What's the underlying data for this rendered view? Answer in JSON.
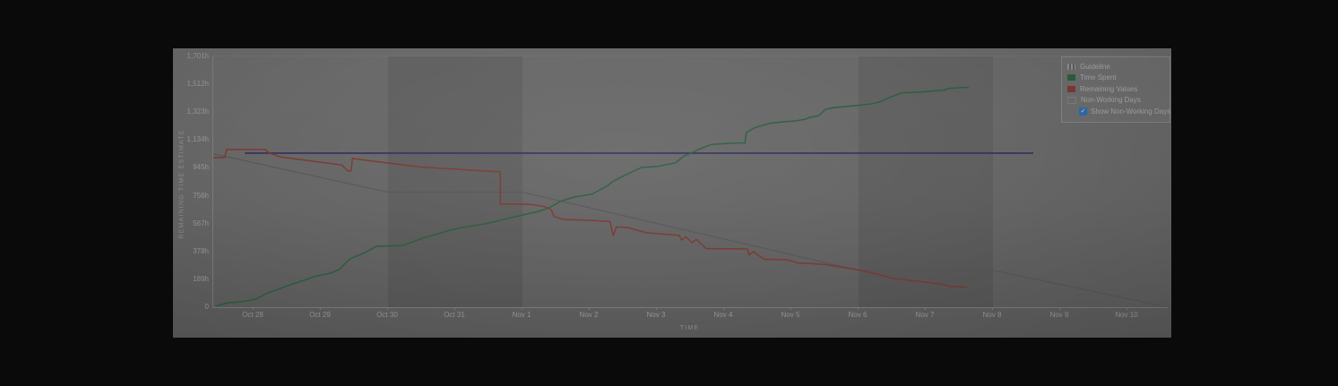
{
  "colors": {
    "page_bg": "#0a0a0a",
    "card_bg": "#676767",
    "band_fill": "rgba(0,0,0,0.075)",
    "guideline": "#56575a",
    "time_spent": "#2e5e41",
    "remaining_values": "#7c3b33",
    "flat_line": "#34345c",
    "checkbox_blue": "#2d6bad",
    "tick_text": "#989898",
    "axis_line": "#7d7d7d"
  },
  "chart_data": {
    "type": "line",
    "title": "",
    "xlabel": "TIME",
    "ylabel": "REMAINING TIME ESTIMATE",
    "x_unit": "day-index (1 = Oct 28)",
    "x_domain": [
      0.4,
      14.6
    ],
    "ylim": [
      0,
      1701
    ],
    "grid": false,
    "legend_position": "top-right",
    "x_ticks": [
      {
        "day": 1,
        "label": "Oct 28"
      },
      {
        "day": 2,
        "label": "Oct 29"
      },
      {
        "day": 3,
        "label": "Oct 30"
      },
      {
        "day": 4,
        "label": "Oct 31"
      },
      {
        "day": 5,
        "label": "Nov 1"
      },
      {
        "day": 6,
        "label": "Nov 2"
      },
      {
        "day": 7,
        "label": "Nov 3"
      },
      {
        "day": 8,
        "label": "Nov 4"
      },
      {
        "day": 9,
        "label": "Nov 5"
      },
      {
        "day": 10,
        "label": "Nov 6"
      },
      {
        "day": 11,
        "label": "Nov 7"
      },
      {
        "day": 12,
        "label": "Nov 8"
      },
      {
        "day": 13,
        "label": "Nov 9"
      },
      {
        "day": 14,
        "label": "Nov 10"
      }
    ],
    "y_ticks": [
      {
        "v": 0,
        "label": "0"
      },
      {
        "v": 189,
        "label": "189h"
      },
      {
        "v": 378,
        "label": "378h"
      },
      {
        "v": 567,
        "label": "567h"
      },
      {
        "v": 756,
        "label": "756h"
      },
      {
        "v": 945,
        "label": "945h"
      },
      {
        "v": 1134,
        "label": "1,134h"
      },
      {
        "v": 1323,
        "label": "1,323h"
      },
      {
        "v": 1512,
        "label": "1,512h"
      },
      {
        "v": 1701,
        "label": "1,701h"
      }
    ],
    "bands": [
      {
        "name": "non-working-days-weekend-1",
        "from": 3,
        "to": 5
      },
      {
        "name": "non-working-days-weekend-2",
        "from": 10,
        "to": 12
      }
    ],
    "series": [
      {
        "name": "Guideline",
        "key": "guideline",
        "color": "#56575a",
        "width": 1.1,
        "points": [
          [
            0.4,
            1040
          ],
          [
            3,
            780
          ],
          [
            5,
            780
          ],
          [
            10,
            250
          ],
          [
            12,
            250
          ],
          [
            14.6,
            0
          ]
        ]
      },
      {
        "name": "Flat reference line",
        "key": "flat_line",
        "color": "#34345c",
        "width": 1.8,
        "points": [
          [
            0.87,
            1045
          ],
          [
            12.6,
            1045
          ]
        ]
      },
      {
        "name": "Time Spent",
        "key": "time_spent",
        "color": "#2e5e41",
        "width": 1.5,
        "points": [
          [
            0.44,
            8
          ],
          [
            0.6,
            28
          ],
          [
            0.84,
            38
          ],
          [
            1.04,
            55
          ],
          [
            1.2,
            95
          ],
          [
            1.37,
            122
          ],
          [
            1.53,
            150
          ],
          [
            1.75,
            183
          ],
          [
            1.93,
            210
          ],
          [
            2.15,
            232
          ],
          [
            2.27,
            255
          ],
          [
            2.37,
            300
          ],
          [
            2.44,
            330
          ],
          [
            2.63,
            365
          ],
          [
            2.83,
            413
          ],
          [
            3.21,
            418
          ],
          [
            3.35,
            440
          ],
          [
            3.51,
            468
          ],
          [
            3.77,
            502
          ],
          [
            3.9,
            519
          ],
          [
            4.04,
            535
          ],
          [
            4.44,
            565
          ],
          [
            4.77,
            601
          ],
          [
            4.97,
            622
          ],
          [
            5.24,
            650
          ],
          [
            5.4,
            675
          ],
          [
            5.55,
            715
          ],
          [
            5.75,
            745
          ],
          [
            6.04,
            768
          ],
          [
            6.27,
            825
          ],
          [
            6.35,
            855
          ],
          [
            6.48,
            885
          ],
          [
            6.77,
            948
          ],
          [
            7.01,
            955
          ],
          [
            7.28,
            980
          ],
          [
            7.4,
            1024
          ],
          [
            7.55,
            1054
          ],
          [
            7.64,
            1074
          ],
          [
            7.81,
            1104
          ],
          [
            8.17,
            1114
          ],
          [
            8.31,
            1114
          ],
          [
            8.33,
            1184
          ],
          [
            8.44,
            1214
          ],
          [
            8.5,
            1224
          ],
          [
            8.71,
            1250
          ],
          [
            9.07,
            1264
          ],
          [
            9.2,
            1274
          ],
          [
            9.28,
            1288
          ],
          [
            9.41,
            1300
          ],
          [
            9.51,
            1342
          ],
          [
            9.64,
            1354
          ],
          [
            9.95,
            1367
          ],
          [
            10.17,
            1377
          ],
          [
            10.3,
            1390
          ],
          [
            10.47,
            1424
          ],
          [
            10.64,
            1453
          ],
          [
            10.93,
            1459
          ],
          [
            11.27,
            1473
          ],
          [
            11.35,
            1485
          ],
          [
            11.64,
            1492
          ]
        ]
      },
      {
        "name": "Remaining Values",
        "key": "remaining_values",
        "color": "#7c3b33",
        "width": 1.5,
        "points": [
          [
            0.4,
            1015
          ],
          [
            0.57,
            1015
          ],
          [
            0.6,
            1070
          ],
          [
            1.17,
            1070
          ],
          [
            1.24,
            1045
          ],
          [
            1.39,
            1020
          ],
          [
            2.31,
            965
          ],
          [
            2.4,
            925
          ],
          [
            2.45,
            925
          ],
          [
            2.47,
            1010
          ],
          [
            2.53,
            1005
          ],
          [
            3.5,
            950
          ],
          [
            4.6,
            920
          ],
          [
            4.67,
            920
          ],
          [
            4.67,
            700
          ],
          [
            5.1,
            698
          ],
          [
            5.3,
            685
          ],
          [
            5.39,
            672
          ],
          [
            5.43,
            660
          ],
          [
            5.47,
            615
          ],
          [
            5.61,
            595
          ],
          [
            6.07,
            588
          ],
          [
            6.3,
            582
          ],
          [
            6.35,
            485
          ],
          [
            6.4,
            545
          ],
          [
            6.57,
            540
          ],
          [
            6.84,
            505
          ],
          [
            7.33,
            488
          ],
          [
            7.37,
            455
          ],
          [
            7.43,
            478
          ],
          [
            7.52,
            438
          ],
          [
            7.59,
            460
          ],
          [
            7.73,
            398
          ],
          [
            8.35,
            395
          ],
          [
            8.37,
            355
          ],
          [
            8.44,
            378
          ],
          [
            8.5,
            355
          ],
          [
            8.6,
            325
          ],
          [
            8.93,
            322
          ],
          [
            9.1,
            300
          ],
          [
            9.5,
            290
          ],
          [
            9.97,
            255
          ],
          [
            10.28,
            225
          ],
          [
            10.5,
            196
          ],
          [
            10.88,
            176
          ],
          [
            11.24,
            156
          ],
          [
            11.37,
            140
          ],
          [
            11.61,
            136
          ]
        ]
      }
    ],
    "legend": {
      "items": [
        {
          "label": "Guideline",
          "swatch": "striped-gray"
        },
        {
          "label": "Time Spent",
          "swatch": "#2e5e41"
        },
        {
          "label": "Remaining Values",
          "swatch": "#7c3b33"
        },
        {
          "label": "Non-Working Days",
          "swatch": "band"
        }
      ],
      "checkbox": {
        "label": "Show Non-Working Days",
        "checked": true
      }
    }
  }
}
